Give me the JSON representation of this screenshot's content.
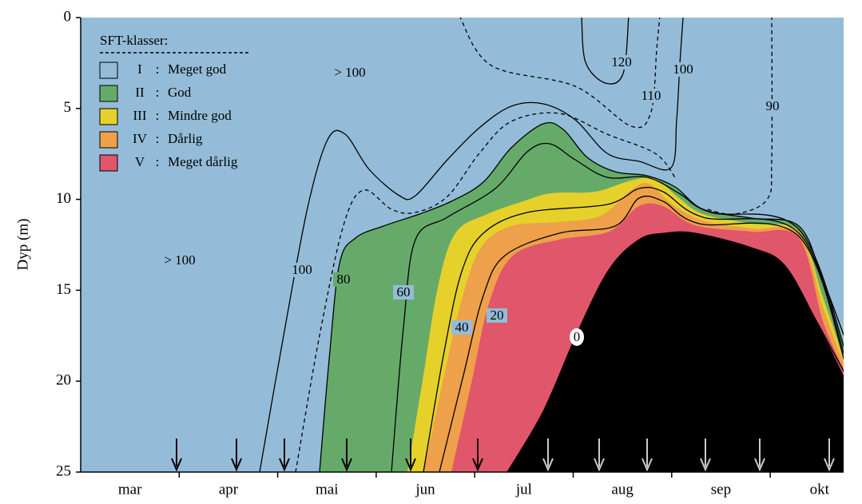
{
  "chart_data": {
    "type": "contour",
    "y_label": "Dyp (m)",
    "ylim": [
      0,
      25
    ],
    "yticks": [
      0,
      5,
      10,
      15,
      20,
      25
    ],
    "categories": [
      "mar",
      "apr",
      "mai",
      "jun",
      "jul",
      "aug",
      "sep",
      "okt"
    ],
    "legend": {
      "title": "SFT-klasser:",
      "separator": ":",
      "items": [
        {
          "class": "I",
          "name": "Meget god",
          "color": "#94bcd8"
        },
        {
          "class": "II",
          "name": "God",
          "color": "#66aa6a"
        },
        {
          "class": "III",
          "name": "Mindre god",
          "color": "#e6d12a"
        },
        {
          "class": "IV",
          "name": "Dårlig",
          "color": "#eea04a"
        },
        {
          "class": "V",
          "name": "Meget dårlig",
          "color": "#e0566a"
        }
      ]
    },
    "contour_levels": [
      100,
      80,
      60,
      40,
      20,
      0,
      120,
      110,
      100,
      90
    ],
    "annotations": [
      "> 100",
      "> 100"
    ]
  }
}
